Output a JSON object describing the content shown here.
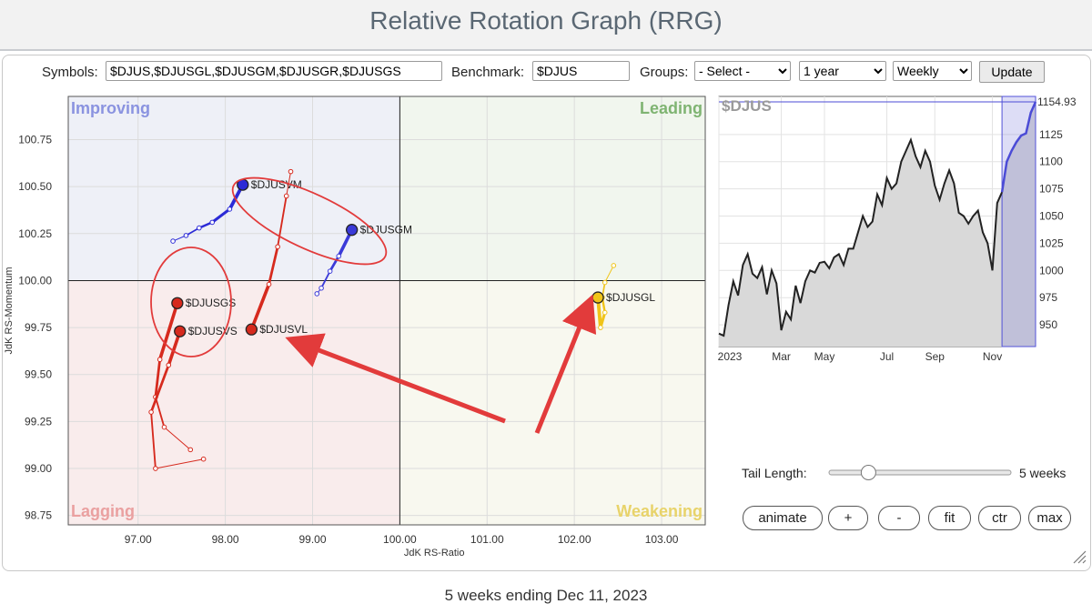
{
  "page_title": "Relative Rotation Graph (RRG)",
  "toolbar": {
    "symbols_label": "Symbols:",
    "symbols_value": "$DJUS,$DJUSGL,$DJUSGM,$DJUSGR,$DJUSGS",
    "benchmark_label": "Benchmark:",
    "benchmark_value": "$DJUS",
    "groups_label": "Groups:",
    "groups_value": "- Select -",
    "period_value": "1 year",
    "frequency_value": "Weekly",
    "update_label": "Update"
  },
  "chart_data": [
    {
      "type": "scatter",
      "xlabel": "JdK RS-Ratio",
      "ylabel": "JdK RS-Momentum",
      "xlim": [
        96.2,
        103.5
      ],
      "ylim": [
        98.7,
        100.98
      ],
      "x_ticks": [
        "97.00",
        "98.00",
        "99.00",
        "100.00",
        "101.00",
        "102.00",
        "103.00"
      ],
      "y_ticks": [
        "100.75",
        "100.50",
        "100.25",
        "100.00",
        "99.75",
        "99.50",
        "99.25",
        "99.00",
        "98.75"
      ],
      "quadrants": {
        "improving": {
          "label": "Improving",
          "color": "#eef0f7",
          "text": "#8a93e0"
        },
        "leading": {
          "label": "Leading",
          "color": "#f1f6ee",
          "text": "#7fb472"
        },
        "lagging": {
          "label": "Lagging",
          "color": "#f9ecec",
          "text": "#eaa0a0"
        },
        "weakening": {
          "label": "Weakening",
          "color": "#f8f8ef",
          "text": "#e8d36a"
        }
      },
      "series": [
        {
          "name": "$DJUSVM",
          "color": "#2b2ad6",
          "points": [
            [
              97.4,
              100.21
            ],
            [
              97.55,
              100.24
            ],
            [
              97.7,
              100.28
            ],
            [
              97.85,
              100.31
            ],
            [
              98.05,
              100.38
            ],
            [
              98.2,
              100.51
            ]
          ]
        },
        {
          "name": "$DJUSGM",
          "color": "#3a3ad8",
          "points": [
            [
              99.05,
              99.93
            ],
            [
              99.1,
              99.96
            ],
            [
              99.2,
              100.05
            ],
            [
              99.3,
              100.13
            ],
            [
              99.45,
              100.27
            ]
          ]
        },
        {
          "name": "$DJUSGS",
          "color": "#d62a1e",
          "points": [
            [
              97.6,
              99.1
            ],
            [
              97.3,
              99.22
            ],
            [
              97.2,
              99.38
            ],
            [
              97.25,
              99.58
            ],
            [
              97.45,
              99.88
            ]
          ]
        },
        {
          "name": "$DJUSVS",
          "color": "#d62a1e",
          "points": [
            [
              97.75,
              99.05
            ],
            [
              97.2,
              99.0
            ],
            [
              97.15,
              99.3
            ],
            [
              97.35,
              99.55
            ],
            [
              97.48,
              99.73
            ]
          ]
        },
        {
          "name": "$DJUSVL",
          "color": "#d62a1e",
          "points": [
            [
              98.75,
              100.58
            ],
            [
              98.7,
              100.45
            ],
            [
              98.6,
              100.18
            ],
            [
              98.5,
              99.98
            ],
            [
              98.3,
              99.74
            ]
          ]
        },
        {
          "name": "$DJUSGL",
          "color": "#f0c419",
          "points": [
            [
              102.45,
              100.08
            ],
            [
              102.35,
              99.99
            ],
            [
              102.32,
              99.91
            ],
            [
              102.35,
              99.83
            ],
            [
              102.3,
              99.75
            ],
            [
              102.27,
              99.91
            ]
          ]
        }
      ]
    },
    {
      "type": "area",
      "title": "$DJUS",
      "x_labels": [
        "2023",
        "Mar",
        "May",
        "Jul",
        "Sep",
        "Nov"
      ],
      "y_ticks": [
        "1125",
        "1100",
        "1075",
        "1050",
        "1025",
        "1000",
        "975",
        "950"
      ],
      "ylim": [
        930,
        1160
      ],
      "last_value": "1154.93",
      "values": [
        942,
        940,
        968,
        990,
        977,
        1005,
        1015,
        997,
        993,
        1003,
        978,
        1000,
        988,
        945,
        962,
        955,
        986,
        970,
        990,
        1000,
        998,
        1007,
        1008,
        1002,
        1012,
        1015,
        1005,
        1020,
        1020,
        1035,
        1050,
        1040,
        1045,
        1070,
        1060,
        1085,
        1075,
        1080,
        1100,
        1110,
        1120,
        1105,
        1095,
        1110,
        1100,
        1078,
        1065,
        1080,
        1092,
        1080,
        1053,
        1050,
        1043,
        1050,
        1055,
        1035,
        1025,
        1000,
        1062,
        1072,
        1100,
        1110,
        1118,
        1124,
        1126,
        1145,
        1155
      ],
      "highlight_start_index": 59
    }
  ],
  "tail": {
    "label": "Tail Length:",
    "value_text": "5 weeks",
    "value": 5,
    "max": 26
  },
  "buttons": [
    "animate",
    "+",
    "-",
    "fit",
    "ctr",
    "max"
  ],
  "footer": "5 weeks ending Dec 11, 2023",
  "annotations": {
    "color": "#e23b3b"
  }
}
